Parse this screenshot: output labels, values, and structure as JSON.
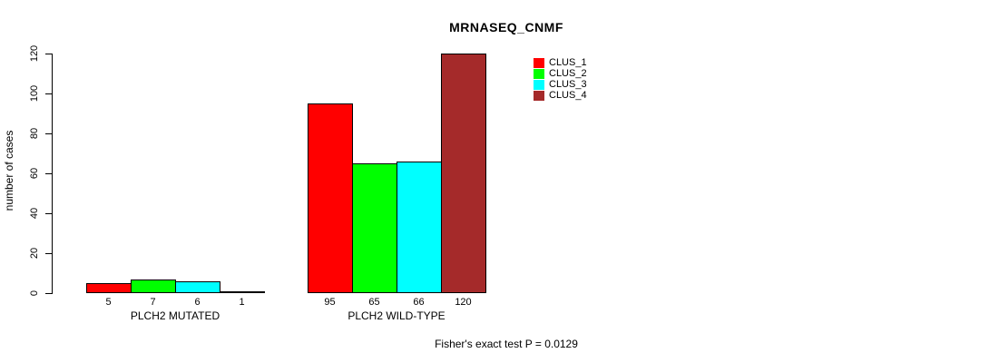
{
  "chart_data": {
    "type": "bar",
    "title": "MRNASEQ_CNMF",
    "ylabel": "number of cases",
    "xlabel": "",
    "ylim": [
      0,
      120
    ],
    "yticks": [
      0,
      20,
      40,
      60,
      80,
      100,
      120
    ],
    "grid": false,
    "legend_position": "top-right",
    "categories": [
      "PLCH2 MUTATED",
      "PLCH2 WILD-TYPE"
    ],
    "series": [
      {
        "name": "CLUS_1",
        "color": "#FF0000",
        "values": [
          5,
          95
        ]
      },
      {
        "name": "CLUS_2",
        "color": "#00FF00",
        "values": [
          7,
          65
        ]
      },
      {
        "name": "CLUS_3",
        "color": "#00FFFF",
        "values": [
          6,
          66
        ]
      },
      {
        "name": "CLUS_4",
        "color": "#A52A2A",
        "values": [
          1,
          120
        ]
      }
    ],
    "bar_value_labels": [
      [
        5,
        7,
        6,
        1
      ],
      [
        95,
        65,
        66,
        120
      ]
    ],
    "footer": "Fisher's exact test P = 0.0129",
    "bar_border_color": "#000000"
  }
}
